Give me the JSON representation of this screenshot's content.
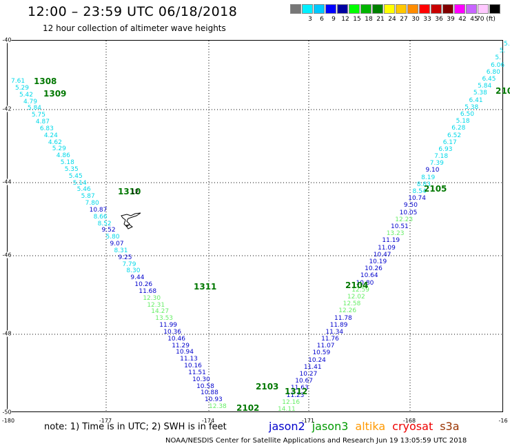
{
  "header": {
    "title": "12:00 – 23:59 UTC 06/18/2018",
    "subtitle": "12 hour collection of altimeter wave heights"
  },
  "colorbar": {
    "colors": [
      "#777777",
      "#00f0ff",
      "#00c8ff",
      "#0000ff",
      "#0000a0",
      "#00ff00",
      "#00b400",
      "#008000",
      "#ffff00",
      "#ffc800",
      "#ff8c00",
      "#ff0000",
      "#c80000",
      "#800000",
      "#ff00ff",
      "#c864ff",
      "#ffc8ff",
      "#000000"
    ],
    "labels": [
      "3",
      "6",
      "9",
      "12",
      "15",
      "18",
      "21",
      "24",
      "27",
      "30",
      "33",
      "36",
      "39",
      "42",
      "45",
      "70 (ft)"
    ]
  },
  "axes": {
    "y_labels": [
      "-40",
      "-42",
      "-44",
      "-46",
      "-48",
      "-50"
    ],
    "x_labels": [
      "-180",
      "-177",
      "-174",
      "-171",
      "-168",
      "-16"
    ]
  },
  "passes": {
    "c1308": "1308",
    "c1309": "1309",
    "c1310": "1310",
    "c1311": "1311",
    "c2102": "2102",
    "c2103": "2103",
    "c1312": "1312",
    "c2104": "2104",
    "c2105": "2105",
    "c210x": "210"
  },
  "island_label": "12",
  "track_left": [
    "7.61",
    "5.29",
    "5.42",
    "4.79",
    "5.84",
    "5.75",
    "4.87",
    "6.83",
    "4.24",
    "4.62",
    "5.29",
    "4.86",
    "5.18",
    "5.35",
    "5.45",
    "5.14",
    "5.46",
    "5.87",
    "7.80",
    "10.87",
    "8.66",
    "8.52",
    "9.52",
    "5.80",
    "9.07",
    "8.31",
    "9.25",
    "7.79",
    "8.30",
    "9.44",
    "10.26",
    "11.68",
    "12.30",
    "12.31",
    "14.27",
    "13.53",
    "11.99",
    "10.36",
    "10.46",
    "11.29",
    "10.94",
    "11.13",
    "10.16",
    "11.51",
    "10.30",
    "10.58",
    "10.88",
    "10.93",
    "12.38"
  ],
  "track_right": [
    "5.",
    "5.",
    "5.",
    "6.06",
    "6.80",
    "6.45",
    "5.84",
    "5.38",
    "6.41",
    "5.38",
    "6.50",
    "5.18",
    "6.28",
    "6.52",
    "6.17",
    "6.93",
    "7.18",
    "7.39",
    "9.10",
    "8.19",
    "8.83",
    "8.54",
    "10.74",
    "9.50",
    "10.05",
    "12.23",
    "10.51",
    "13.23",
    "11.19",
    "11.09",
    "10.47",
    "10.19",
    "10.26",
    "10.64",
    "10.80",
    "12.59",
    "12.02",
    "12.58",
    "12.26",
    "11.78",
    "11.89",
    "11.34",
    "11.76",
    "11.07",
    "10.59",
    "10.24",
    "11.41",
    "10.27",
    "10.67",
    "11.63",
    "11.23",
    "12.16",
    "14.11"
  ],
  "legend": {
    "note": "note: 1) Time is in UTC; 2) SWH is in feet",
    "sats": [
      {
        "name": "jason2",
        "color": "#0000cc"
      },
      {
        "name": "jason3",
        "color": "#009900"
      },
      {
        "name": "altika",
        "color": "#ff9900"
      },
      {
        "name": "cryosat",
        "color": "#ee0000"
      },
      {
        "name": "s3a",
        "color": "#993300"
      }
    ]
  },
  "footer": "NOAA/NESDIS Center for Satellite Applications and Research   Jun 19 13:05:59 UTC 2018"
}
